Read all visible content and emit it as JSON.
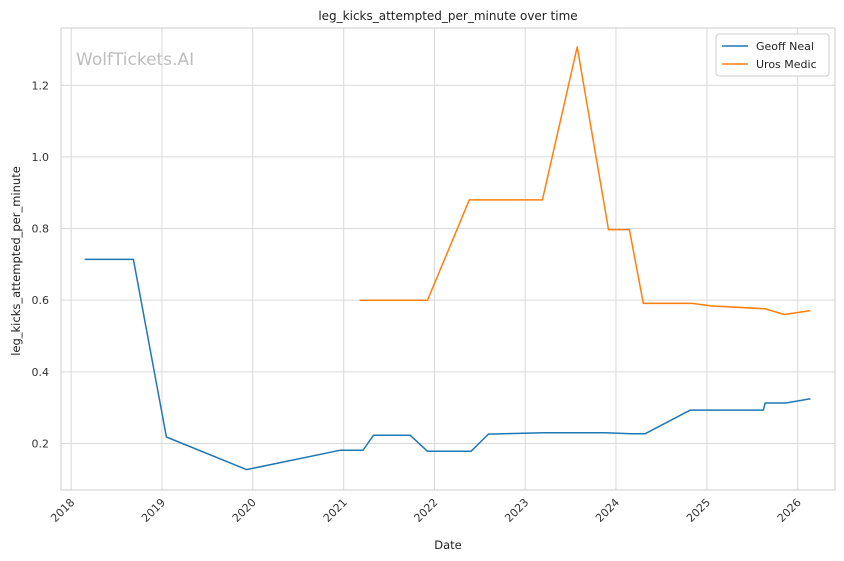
{
  "chart_data": {
    "type": "line",
    "title": "leg_kicks_attempted_per_minute over time",
    "xlabel": "Date",
    "ylabel": "leg_kicks_attempted_per_minute",
    "watermark": "WolfTickets.AI",
    "x_ticks": [
      "2018",
      "2019",
      "2020",
      "2021",
      "2022",
      "2023",
      "2024",
      "2025",
      "2026"
    ],
    "y_ticks": [
      "0.2",
      "0.4",
      "0.6",
      "0.8",
      "1.0",
      "1.2"
    ],
    "xlim": [
      "2017-11-21",
      "2026-05-31"
    ],
    "ylim": [
      0.07,
      1.36
    ],
    "grid": true,
    "legend_position": "top-right",
    "series": [
      {
        "name": "Geoff Neal",
        "color": "#1f77b4",
        "points": [
          [
            "2018-02-24",
            0.714
          ],
          [
            "2018-09-08",
            0.714
          ],
          [
            "2019-01-19",
            0.218
          ],
          [
            "2019-12-07",
            0.127
          ],
          [
            "2020-12-19",
            0.181
          ],
          [
            "2021-03-20",
            0.181
          ],
          [
            "2021-05-01",
            0.223
          ],
          [
            "2021-09-25",
            0.223
          ],
          [
            "2021-12-04",
            0.178
          ],
          [
            "2022-05-28",
            0.178
          ],
          [
            "2022-08-06",
            0.226
          ],
          [
            "2023-03-18",
            0.23
          ],
          [
            "2023-11-18",
            0.23
          ],
          [
            "2024-03-02",
            0.227
          ],
          [
            "2024-04-27",
            0.227
          ],
          [
            "2024-10-26",
            0.293
          ],
          [
            "2025-08-16",
            0.293
          ],
          [
            "2025-08-23",
            0.313
          ],
          [
            "2025-11-15",
            0.313
          ],
          [
            "2026-02-21",
            0.325
          ]
        ]
      },
      {
        "name": "Uros Medic",
        "color": "#ff7f0e",
        "points": [
          [
            "2021-03-06",
            0.6
          ],
          [
            "2021-12-04",
            0.6
          ],
          [
            "2022-05-21",
            0.88
          ],
          [
            "2023-03-11",
            0.88
          ],
          [
            "2023-07-29",
            1.307
          ],
          [
            "2023-12-02",
            0.797
          ],
          [
            "2024-02-24",
            0.797
          ],
          [
            "2024-04-20",
            0.591
          ],
          [
            "2024-11-02",
            0.591
          ],
          [
            "2025-01-18",
            0.584
          ],
          [
            "2025-08-23",
            0.576
          ],
          [
            "2025-11-08",
            0.56
          ],
          [
            "2026-02-21",
            0.571
          ]
        ]
      }
    ]
  }
}
